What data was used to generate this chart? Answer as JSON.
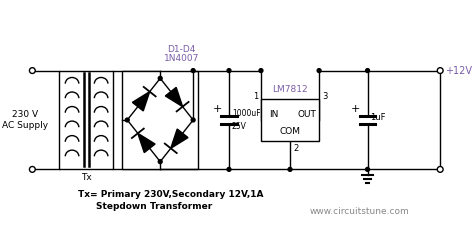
{
  "bg_color": "#ffffff",
  "line_color": "#000000",
  "text_color": "#000000",
  "purple_color": "#7b5ea7",
  "gray_color": "#888888",
  "title_text1": "Tx= Primary 230V,Secondary 12V,1A",
  "title_text2": "Stepdown Transformer",
  "website": "www.circuitstune.com",
  "supply_label": "230 V\nAC Supply",
  "tx_label": "Tx",
  "diode_label1": "D1-D4",
  "diode_label2": "1N4007",
  "ic_label": "LM7812",
  "cap1_label1": "1000uF",
  "cap1_label2": "25V",
  "cap2_label": "1uF",
  "output_label": "+12V",
  "pin1": "1",
  "pin2": "2",
  "pin3": "3",
  "in_label": "IN",
  "out_label": "OUT",
  "com_label": "COM",
  "plus_sign": "+"
}
